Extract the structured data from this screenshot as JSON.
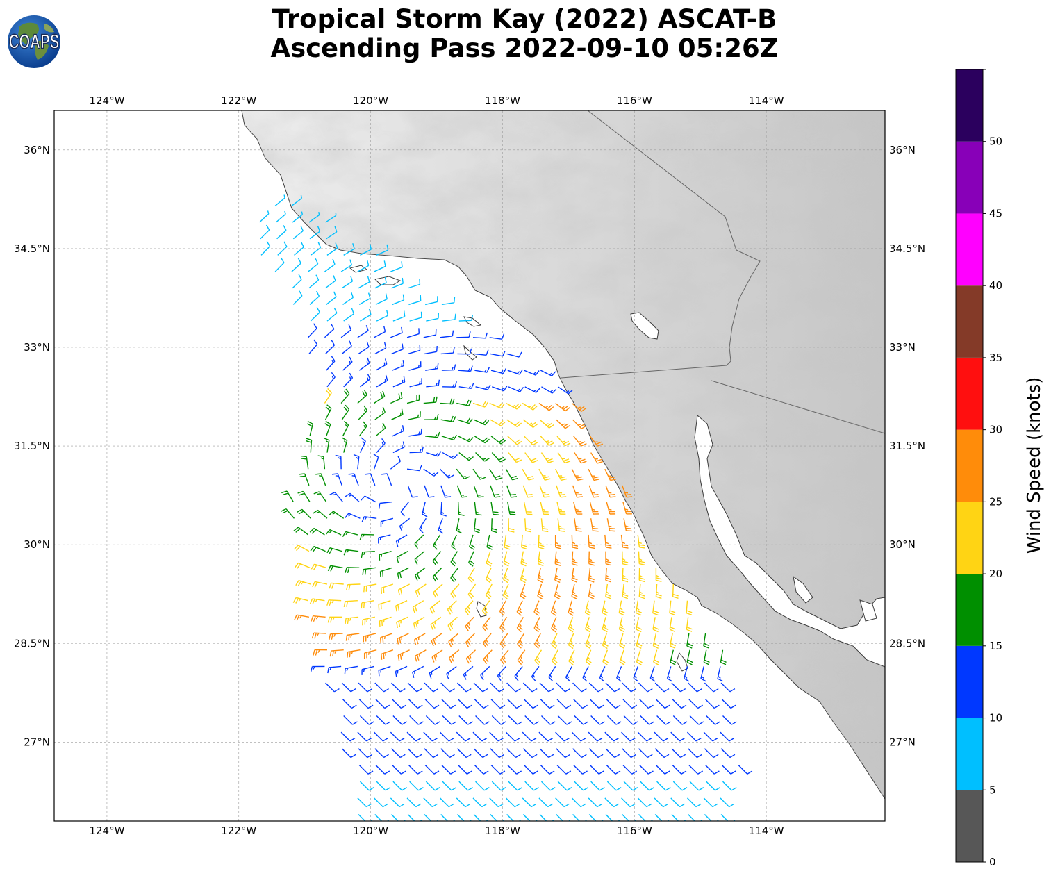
{
  "title": {
    "line1": "Tropical Storm Kay (2022) ASCAT-B",
    "line2": "Ascending Pass 2022-09-10 05:26Z"
  },
  "logo": {
    "text": "COAPS",
    "icon": "globe-logo-icon"
  },
  "map": {
    "lon_range": [
      -124.8,
      -112.2
    ],
    "lat_range": [
      25.8,
      36.6
    ],
    "lon_ticks": [
      "124°W",
      "122°W",
      "120°W",
      "118°W",
      "116°W",
      "114°W"
    ],
    "lon_tick_values": [
      -124,
      -122,
      -120,
      -118,
      -116,
      -114
    ],
    "lat_ticks": [
      "36°N",
      "34.5°N",
      "33°N",
      "31.5°N",
      "30°N",
      "28.5°N",
      "27°N"
    ],
    "lat_tick_values": [
      36,
      34.5,
      33,
      31.5,
      30,
      28.5,
      27
    ],
    "gridlines": true,
    "land_shading": "grayscale topography",
    "storm_center_approx": [
      -119.6,
      30.9
    ]
  },
  "colorbar": {
    "label": "Wind Speed (knots)",
    "ticks": [
      "0",
      "5",
      "10",
      "15",
      "20",
      "25",
      "30",
      "35",
      "40",
      "45",
      "50"
    ],
    "bins": [
      {
        "min": 0,
        "max": 5,
        "color": "#575757"
      },
      {
        "min": 5,
        "max": 10,
        "color": "#00bfff"
      },
      {
        "min": 10,
        "max": 15,
        "color": "#0038ff"
      },
      {
        "min": 15,
        "max": 20,
        "color": "#008f00"
      },
      {
        "min": 20,
        "max": 25,
        "color": "#ffd414"
      },
      {
        "min": 25,
        "max": 30,
        "color": "#ff8c0a"
      },
      {
        "min": 30,
        "max": 35,
        "color": "#ff0f0f"
      },
      {
        "min": 35,
        "max": 40,
        "color": "#843a28"
      },
      {
        "min": 40,
        "max": 45,
        "color": "#ff00ff"
      },
      {
        "min": 45,
        "max": 50,
        "color": "#8800b8"
      },
      {
        "min": 50,
        "max": 55,
        "color": "#2b005e"
      }
    ]
  }
}
